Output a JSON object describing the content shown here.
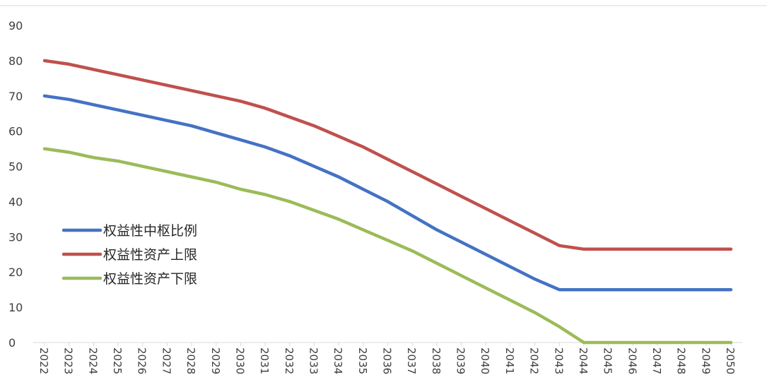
{
  "chart_data": {
    "type": "line",
    "title": "",
    "xlabel": "",
    "ylabel": "",
    "ylim": [
      0,
      90
    ],
    "y_ticks": [
      0,
      10,
      20,
      30,
      40,
      50,
      60,
      70,
      80,
      90
    ],
    "grid": false,
    "legend_position": "left",
    "categories": [
      "2022",
      "2023",
      "2024",
      "2025",
      "2026",
      "2027",
      "2028",
      "2029",
      "2030",
      "2031",
      "2032",
      "2033",
      "2034",
      "2035",
      "2036",
      "2037",
      "2038",
      "2039",
      "2040",
      "2041",
      "2042",
      "2043",
      "2044",
      "2045",
      "2046",
      "2047",
      "2048",
      "2049",
      "2050"
    ],
    "series": [
      {
        "name": "权益性中枢比例",
        "color": "#4472C4",
        "values": [
          70,
          69,
          67.5,
          66,
          64.5,
          63,
          61.5,
          59.5,
          57.5,
          55.5,
          53,
          50,
          47,
          43.5,
          40,
          36,
          32,
          28.5,
          25,
          21.5,
          18,
          15,
          15,
          15,
          15,
          15,
          15,
          15,
          15
        ]
      },
      {
        "name": "权益性资产上限",
        "color": "#C0504D",
        "values": [
          80,
          79,
          77.5,
          76,
          74.5,
          73,
          71.5,
          70,
          68.5,
          66.5,
          64,
          61.5,
          58.5,
          55.5,
          52,
          48.5,
          45,
          41.5,
          38,
          34.5,
          31,
          27.5,
          26.5,
          26.5,
          26.5,
          26.5,
          26.5,
          26.5,
          26.5
        ]
      },
      {
        "name": "权益性资产下限",
        "color": "#9BBB59",
        "values": [
          55,
          54,
          52.5,
          51.5,
          50,
          48.5,
          47,
          45.5,
          43.5,
          42,
          40,
          37.5,
          35,
          32,
          29,
          26,
          22.5,
          19,
          15.5,
          12,
          8.5,
          4.5,
          0,
          0,
          0,
          0,
          0,
          0,
          0
        ]
      }
    ]
  }
}
